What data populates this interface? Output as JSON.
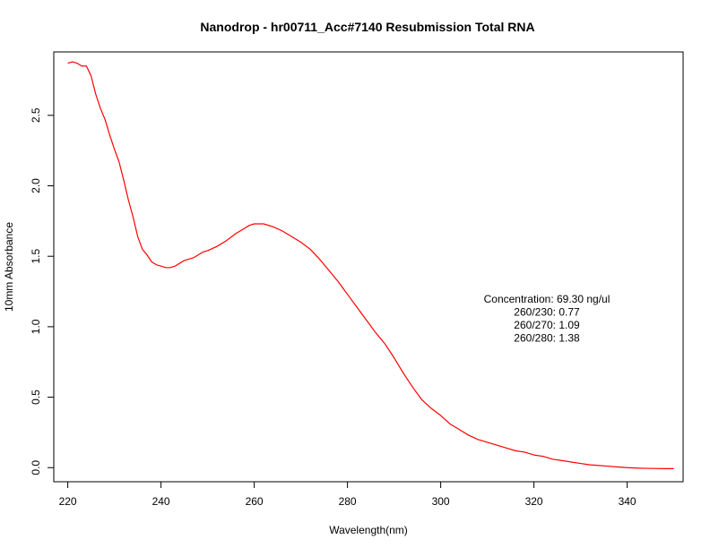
{
  "chart_data": {
    "type": "line",
    "title": "Nanodrop - hr00711_Acc#7140 Resubmission Total RNA",
    "xlabel": "Wavelength(nm)",
    "ylabel": "10mm Absorbance",
    "xlim": [
      217,
      352
    ],
    "ylim": [
      -0.1,
      2.95
    ],
    "xticks": [
      220,
      240,
      260,
      280,
      300,
      320,
      340
    ],
    "yticks": [
      0.0,
      0.5,
      1.0,
      1.5,
      2.0,
      2.5
    ],
    "ytick_labels": [
      "0.0",
      "0.5",
      "1.0",
      "1.5",
      "2.0",
      "2.5"
    ],
    "grid": false,
    "line_color": "#ff0000",
    "annotations": [
      "Concentration: 69.30 ng/ul",
      "260/230: 0.77",
      "260/270: 1.09",
      "260/280: 1.38"
    ],
    "series": [
      {
        "x": [
          220,
          221,
          222,
          223,
          224,
          225,
          226,
          227,
          228,
          229,
          230,
          231,
          232,
          233,
          234,
          235,
          236,
          237,
          238,
          239,
          240,
          241,
          242,
          243,
          244,
          245,
          246,
          247,
          248,
          249,
          250,
          252,
          254,
          256,
          258,
          259,
          260,
          261,
          262,
          264,
          266,
          268,
          270,
          272,
          274,
          276,
          278,
          280,
          282,
          284,
          286,
          288,
          290,
          292,
          294,
          296,
          298,
          300,
          302,
          304,
          306,
          308,
          310,
          312,
          314,
          316,
          318,
          320,
          322,
          324,
          326,
          328,
          330,
          332,
          334,
          336,
          338,
          340,
          342,
          344,
          346,
          348,
          350
        ],
        "y": [
          2.87,
          2.88,
          2.87,
          2.85,
          2.85,
          2.78,
          2.65,
          2.55,
          2.47,
          2.36,
          2.26,
          2.17,
          2.04,
          1.9,
          1.78,
          1.64,
          1.55,
          1.51,
          1.46,
          1.44,
          1.43,
          1.42,
          1.42,
          1.43,
          1.45,
          1.47,
          1.48,
          1.49,
          1.51,
          1.53,
          1.54,
          1.57,
          1.61,
          1.66,
          1.7,
          1.72,
          1.73,
          1.73,
          1.73,
          1.71,
          1.68,
          1.64,
          1.6,
          1.55,
          1.48,
          1.4,
          1.32,
          1.23,
          1.14,
          1.05,
          0.96,
          0.88,
          0.78,
          0.67,
          0.57,
          0.48,
          0.42,
          0.37,
          0.31,
          0.27,
          0.23,
          0.2,
          0.18,
          0.16,
          0.14,
          0.12,
          0.11,
          0.09,
          0.08,
          0.06,
          0.05,
          0.04,
          0.03,
          0.02,
          0.015,
          0.01,
          0.005,
          0.0,
          -0.003,
          -0.005,
          -0.006,
          -0.007,
          -0.007
        ]
      }
    ]
  }
}
